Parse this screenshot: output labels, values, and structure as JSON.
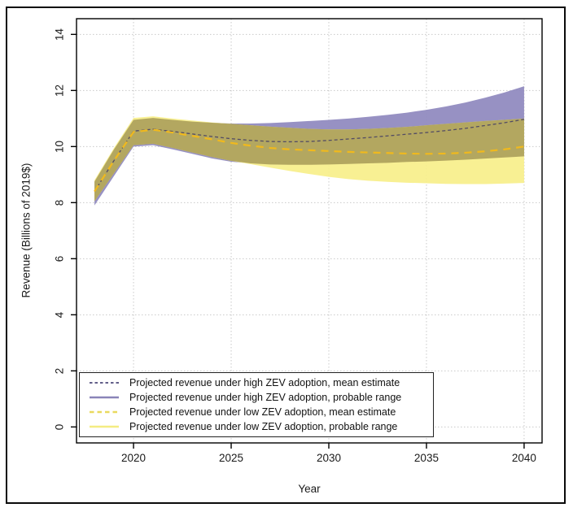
{
  "chart_data": {
    "type": "line",
    "title": "",
    "xlabel": "Year",
    "ylabel": "Revenue (Billions of 2019$)",
    "xlim": [
      2017.08,
      2040.92
    ],
    "ylim": [
      -0.57,
      14.56
    ],
    "xticks": [
      "2020",
      "2025",
      "2030",
      "2035",
      "2040"
    ],
    "xtick_values": [
      2020,
      2025,
      2030,
      2035,
      2040
    ],
    "yticks": [
      "0",
      "2",
      "4",
      "6",
      "8",
      "10",
      "12",
      "14"
    ],
    "ytick_values": [
      0,
      2,
      4,
      6,
      8,
      10,
      12,
      14
    ],
    "grid": "dotted",
    "grid_color": "#c9c9c9",
    "legend_position": "bottom-left",
    "band_overlap_color": "#b0a35e",
    "x": [
      2018,
      2019,
      2020,
      2021,
      2022,
      2023,
      2024,
      2025,
      2026,
      2027,
      2028,
      2029,
      2030,
      2031,
      2032,
      2033,
      2034,
      2035,
      2036,
      2037,
      2038,
      2039,
      2040
    ],
    "series": [
      {
        "name": "Projected revenue under high ZEV adoption, mean estimate",
        "kind": "mean-line",
        "color": "#332d66",
        "legend_color": "#2f2a63",
        "values": [
          8.4,
          9.5,
          10.55,
          10.62,
          10.54,
          10.45,
          10.36,
          10.28,
          10.22,
          10.18,
          10.17,
          10.18,
          10.22,
          10.27,
          10.32,
          10.38,
          10.44,
          10.5,
          10.57,
          10.65,
          10.75,
          10.85,
          10.97
        ]
      },
      {
        "name": "Projected revenue under high ZEV adoption, probable range",
        "kind": "band",
        "color": "#918bc0",
        "legend_color": "#8a84b8",
        "upper": [
          8.75,
          9.9,
          10.95,
          11.02,
          10.95,
          10.89,
          10.85,
          10.82,
          10.82,
          10.84,
          10.87,
          10.91,
          10.95,
          11.0,
          11.06,
          11.13,
          11.21,
          11.31,
          11.43,
          11.57,
          11.74,
          11.93,
          12.15
        ],
        "lower": [
          7.9,
          8.95,
          10.0,
          10.05,
          9.9,
          9.74,
          9.58,
          9.46,
          9.4,
          9.36,
          9.35,
          9.35,
          9.36,
          9.38,
          9.4,
          9.42,
          9.45,
          9.47,
          9.5,
          9.53,
          9.57,
          9.61,
          9.65
        ]
      },
      {
        "name": "Projected revenue under low ZEV adoption, mean estimate",
        "kind": "mean-line",
        "color": "#f0b91d",
        "legend_color": "#e9d95e",
        "values": [
          8.4,
          9.5,
          10.52,
          10.6,
          10.5,
          10.38,
          10.26,
          10.13,
          10.03,
          9.95,
          9.9,
          9.87,
          9.84,
          9.81,
          9.79,
          9.77,
          9.75,
          9.74,
          9.75,
          9.78,
          9.83,
          9.9,
          10.0
        ]
      },
      {
        "name": "Projected revenue under low ZEV adoption, probable range",
        "kind": "band",
        "color": "#f8ef8d",
        "legend_color": "#f4ec82",
        "upper": [
          8.8,
          9.95,
          11.02,
          11.08,
          11.0,
          10.93,
          10.86,
          10.81,
          10.76,
          10.71,
          10.67,
          10.63,
          10.61,
          10.61,
          10.63,
          10.66,
          10.7,
          10.76,
          10.81,
          10.86,
          10.91,
          10.95,
          11.0
        ],
        "lower": [
          8.05,
          9.05,
          10.05,
          10.1,
          9.95,
          9.79,
          9.63,
          9.49,
          9.37,
          9.25,
          9.13,
          9.02,
          8.92,
          8.84,
          8.78,
          8.74,
          8.71,
          8.69,
          8.67,
          8.66,
          8.66,
          8.68,
          8.7
        ]
      }
    ]
  }
}
